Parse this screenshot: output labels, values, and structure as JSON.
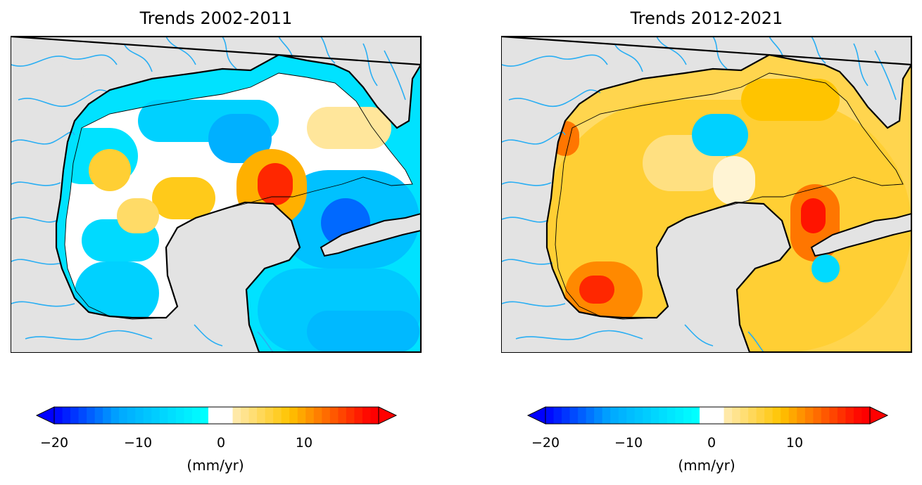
{
  "panels": [
    {
      "title": "Trends 2002-2011",
      "scenario": "cool"
    },
    {
      "title": "Trends 2012-2021",
      "scenario": "warm"
    }
  ],
  "colorbar": {
    "label": "(mm/yr)",
    "range": [
      -20,
      20
    ],
    "ticks": [
      "−20",
      "−10",
      "0",
      "10"
    ],
    "tick_values": [
      -20,
      -10,
      0,
      10
    ],
    "colors": {
      "neg_strong": "#0000ff",
      "neg_mid": "#00a8ff",
      "neg_weak": "#00ffff",
      "zero": "#ffffff",
      "pos_weak": "#ffe9a8",
      "pos_mid": "#ffc400",
      "pos_strong": "#ff0000"
    }
  },
  "map_colors": {
    "land": "#e3e3e3",
    "rivers": "#29aef3",
    "coast": "#000000"
  }
}
